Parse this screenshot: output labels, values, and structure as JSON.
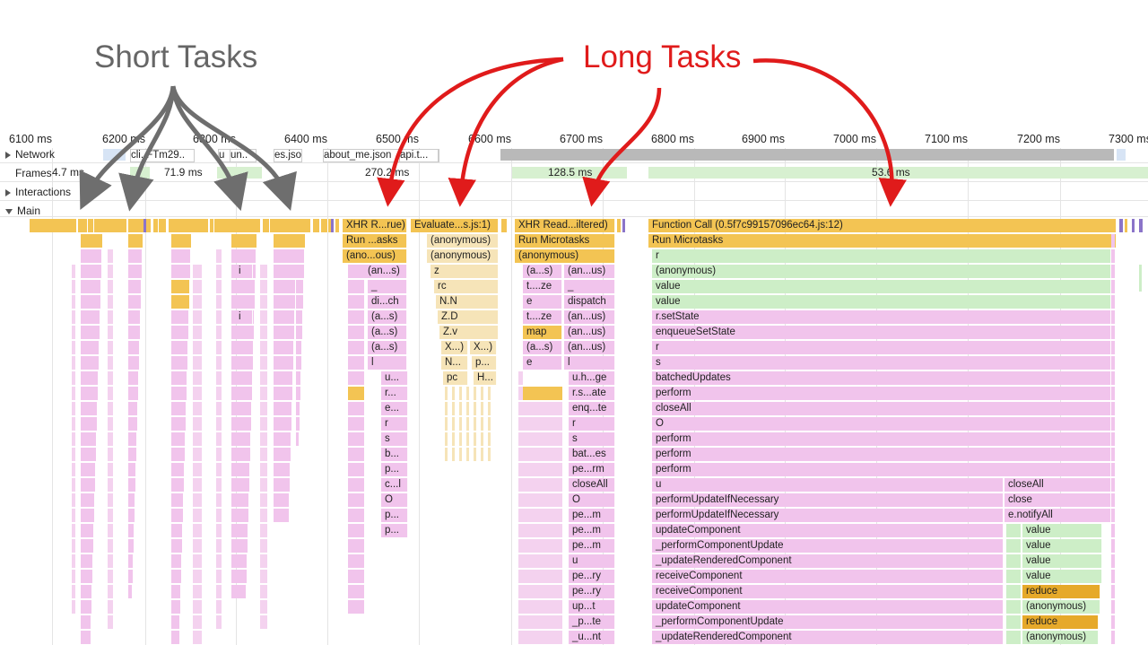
{
  "annotations": {
    "short_tasks": "Short Tasks",
    "long_tasks": "Long Tasks"
  },
  "colors": {
    "short_arrow": "#6e6e6e",
    "long_arrow": "#e01b1b",
    "scripting": "#f3c453",
    "rendering_pink": "#f1c4ec",
    "green": "#cdeec7",
    "evaluate": "#f6e4b8"
  },
  "timeline": {
    "ticks": [
      "6100 ms",
      "6200 ms",
      "6300 ms",
      "6400 ms",
      "6500 ms",
      "6600 ms",
      "6700 ms",
      "6800 ms",
      "6900 ms",
      "7000 ms",
      "7100 ms",
      "7200 ms",
      "7300 ms"
    ]
  },
  "tracks": {
    "network": "Network",
    "frames": "Frames",
    "interactions": "Interactions",
    "main": "Main"
  },
  "network_items": [
    "cli..FTm29..",
    "u",
    "un..",
    "es.jso",
    "about_me.json",
    "api.t..."
  ],
  "frames": [
    "4.7 ms",
    "71.9 ms",
    "270.2 ms",
    "128.5 ms",
    "53.6 ms"
  ],
  "flame": {
    "t1": [
      "XHR R...rue)",
      "Run ...asks",
      "(ano...ous)",
      "(an...s)",
      "_",
      "di...ch",
      "(a...s)",
      "(a...s)",
      "(a...s)",
      "l",
      "u...",
      "r...",
      "e...",
      "r",
      "s",
      "b...",
      "p...",
      "c...l",
      "O",
      "p...",
      "p..."
    ],
    "t1_side": [
      "i",
      "i"
    ],
    "t2": [
      "Evaluate...s.js:1)",
      "(anonymous)",
      "(anonymous)",
      "z",
      "rc",
      "N.N",
      "Z.D",
      "Z.v",
      "X...)",
      "X...)",
      "N...",
      "p...",
      "pc",
      "H..."
    ],
    "t3": [
      "XHR Read...iltered)",
      "Run Microtasks",
      "(anonymous)",
      "(a...s)",
      "(an...us)",
      "t....ze",
      "_",
      "e",
      "dispatch",
      "t....ze",
      "(an...us)",
      "map",
      "(an...us)",
      "(a...s)",
      "(an...us)",
      "e",
      "l",
      "u.h...ge",
      "r.s...ate",
      "enq...te",
      "r",
      "s",
      "bat...es",
      "pe...rm",
      "closeAll",
      "O",
      "pe...m",
      "pe...m",
      "pe...m",
      "u",
      "pe...ry",
      "pe...ry",
      "up...t",
      "_p...te",
      "_u...nt"
    ],
    "t4": [
      "Function Call (0.5f7c99157096ec64.js:12)",
      "Run Microtasks",
      "r",
      "(anonymous)",
      "value",
      "value",
      "r.setState",
      "enqueueSetState",
      "r",
      "s",
      "batchedUpdates",
      "perform",
      "closeAll",
      "O",
      "perform",
      "perform",
      "perform",
      "u",
      "performUpdateIfNecessary",
      "performUpdateIfNecessary",
      "updateComponent",
      "_performComponentUpdate",
      "_updateRenderedComponent",
      "receiveComponent",
      "receiveComponent",
      "updateComponent",
      "_performComponentUpdate",
      "_updateRenderedComponent"
    ],
    "t4_side": [
      "closeAll",
      "close",
      "e.notifyAll",
      "value",
      "value",
      "value",
      "value",
      "reduce",
      "(anonymous)",
      "reduce",
      "(anonymous)"
    ]
  }
}
